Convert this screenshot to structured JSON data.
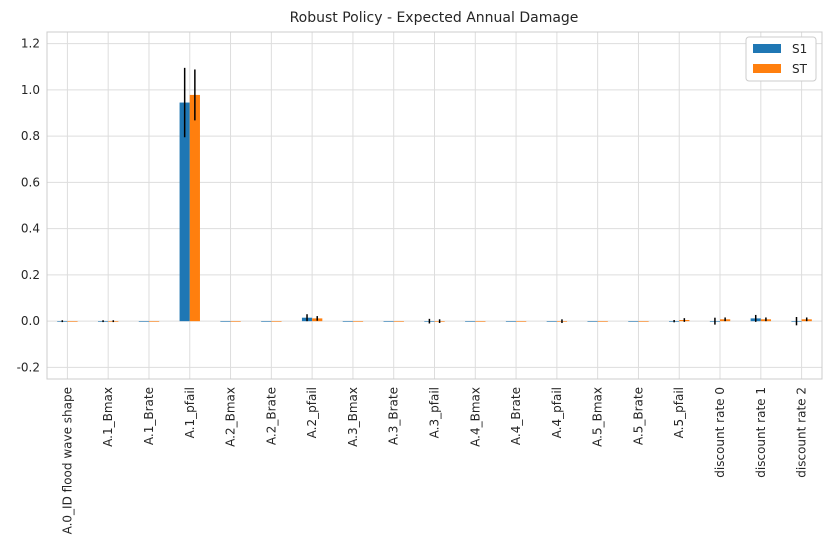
{
  "chart_data": {
    "type": "bar",
    "title": "Robust Policy - Expected Annual Damage",
    "xlabel": "",
    "ylabel": "",
    "ylim": [
      -0.25,
      1.25
    ],
    "yticks": [
      "-0.2",
      "0.0",
      "0.2",
      "0.4",
      "0.6",
      "0.8",
      "1.0",
      "1.2"
    ],
    "grid": true,
    "legend_position": "top-right",
    "categories": [
      "A.0_ID flood wave shape",
      "A.1_Bmax",
      "A.1_Brate",
      "A.1_pfail",
      "A.2_Bmax",
      "A.2_Brate",
      "A.2_pfail",
      "A.3_Bmax",
      "A.3_Brate",
      "A.3_pfail",
      "A.4_Bmax",
      "A.4_Brate",
      "A.4_pfail",
      "A.5_Bmax",
      "A.5_Brate",
      "A.5_pfail",
      "discount rate 0",
      "discount rate 1",
      "discount rate 2"
    ],
    "series": [
      {
        "name": "S1",
        "color": "#1f77b4",
        "values": [
          0.0,
          0.0,
          0.0,
          0.945,
          0.0,
          0.0,
          0.015,
          0.0,
          0.0,
          0.0,
          0.0,
          0.0,
          0.0,
          0.0,
          0.0,
          0.0,
          0.0,
          0.012,
          0.0
        ],
        "errors": [
          0.004,
          0.004,
          0.0,
          0.15,
          0.0,
          0.0,
          0.015,
          0.0,
          0.0,
          0.01,
          0.0,
          0.0,
          0.0,
          0.0,
          0.0,
          0.005,
          0.015,
          0.015,
          0.018
        ]
      },
      {
        "name": "ST",
        "color": "#ff7f0e",
        "values": [
          0.0,
          0.0,
          0.0,
          0.978,
          0.0,
          0.0,
          0.012,
          0.0,
          0.0,
          0.0,
          0.0,
          0.0,
          0.0,
          0.0,
          0.0,
          0.005,
          0.008,
          0.008,
          0.008
        ],
        "errors": [
          0.0,
          0.004,
          0.0,
          0.11,
          0.0,
          0.0,
          0.01,
          0.0,
          0.0,
          0.008,
          0.0,
          0.0,
          0.008,
          0.0,
          0.0,
          0.008,
          0.008,
          0.008,
          0.008
        ]
      }
    ]
  }
}
